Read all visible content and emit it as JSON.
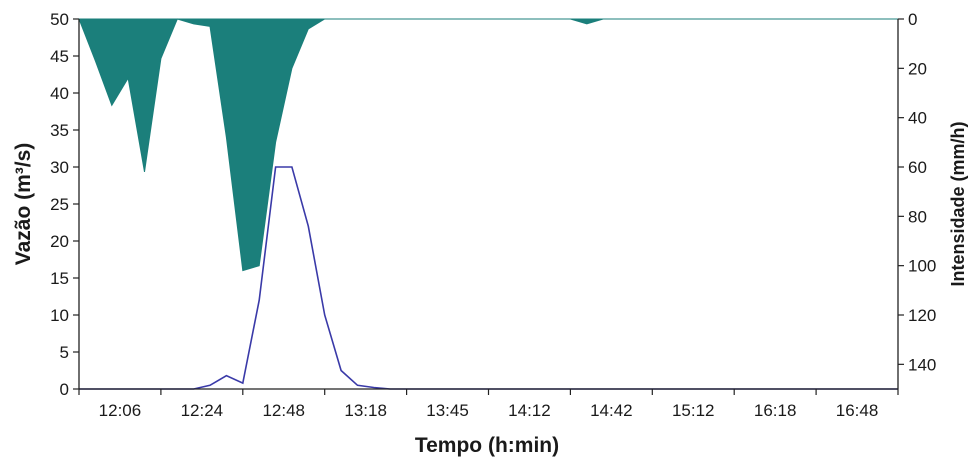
{
  "chart_data": {
    "type": "area",
    "xlabel": "Tempo (h:min)",
    "ylabel_left": "Vazão (m³/s)",
    "ylabel_right": "Intensidade (mm/h)",
    "x_tick_labels": [
      "12:06",
      "12:24",
      "12:48",
      "13:18",
      "13:45",
      "14:12",
      "14:42",
      "15:12",
      "16:18",
      "16:48"
    ],
    "ylim_left": [
      0,
      50
    ],
    "yticks_left": [
      0,
      5,
      10,
      15,
      20,
      25,
      30,
      35,
      40,
      45,
      50
    ],
    "ylim_right": [
      0,
      150
    ],
    "right_axis_inverted": true,
    "yticks_right": [
      0,
      20,
      40,
      60,
      80,
      100,
      120,
      140
    ],
    "grid": false,
    "legend": "none",
    "x_positions": [
      0,
      0.5,
      1,
      1.5,
      2,
      2.5,
      3,
      3.5,
      4,
      4.5,
      5,
      5.5,
      6,
      6.5,
      7,
      7.5,
      8,
      8.5,
      9,
      9.5,
      10,
      10.5,
      11,
      11.5,
      12,
      12.5,
      13,
      13.5,
      14,
      14.5,
      15,
      15.5,
      16,
      16.5,
      17,
      17.5,
      18,
      18.5,
      19,
      19.5,
      20,
      20.5,
      21,
      21.5,
      22,
      22.5,
      23,
      23.5,
      24,
      24.5,
      25
    ],
    "series": [
      {
        "axis": "right",
        "color": "#1b7f7b",
        "values": [
          0,
          17,
          35,
          24,
          62,
          16,
          0,
          2,
          3,
          48,
          102,
          100,
          50,
          20,
          4,
          0,
          0,
          0,
          0,
          0,
          0,
          0,
          0,
          0,
          0,
          0,
          0,
          0,
          0,
          0,
          0,
          2,
          0,
          0,
          0,
          0,
          0,
          0,
          0,
          0,
          0,
          0,
          0,
          0,
          0,
          0,
          0,
          0,
          0,
          0,
          0
        ]
      },
      {
        "axis": "left",
        "color": "#3a3aa8",
        "values": [
          0,
          0,
          0,
          0,
          0,
          0,
          0,
          0,
          0.5,
          1.8,
          0.8,
          12,
          30,
          30,
          22,
          10,
          2.5,
          0.5,
          0.2,
          0,
          0,
          0,
          0,
          0,
          0,
          0,
          0,
          0,
          0,
          0,
          0,
          0,
          0,
          0,
          0,
          0,
          0,
          0,
          0,
          0,
          0,
          0,
          0,
          0,
          0,
          0,
          0,
          0,
          0,
          0,
          0
        ]
      }
    ]
  }
}
